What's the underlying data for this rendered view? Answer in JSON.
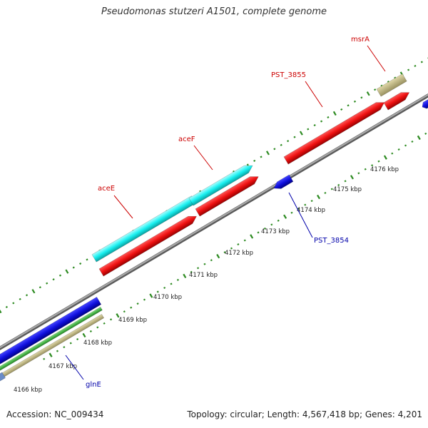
{
  "title": "Pseudomonas stutzeri A1501, complete genome",
  "footer": {
    "accession": "Accession: NC_009434",
    "summary": "Topology: circular; Length: 4,567,418 bp; Genes: 4,201"
  },
  "ticks": [
    {
      "label": "4166 kbp"
    },
    {
      "label": "4167 kbp"
    },
    {
      "label": "4168 kbp"
    },
    {
      "label": "4169 kbp"
    },
    {
      "label": "4170 kbp"
    },
    {
      "label": "4171 kbp"
    },
    {
      "label": "4172 kbp"
    },
    {
      "label": "4173 kbp"
    },
    {
      "label": "4174 kbp"
    },
    {
      "label": "4175 kbp"
    },
    {
      "label": "4176 kbp"
    }
  ],
  "gene_labels": [
    {
      "name": "aceE",
      "color": "#cc0000"
    },
    {
      "name": "aceF",
      "color": "#cc0000"
    },
    {
      "name": "PST_3855",
      "color": "#cc0000"
    },
    {
      "name": "msrA",
      "color": "#cc0000"
    },
    {
      "name": "PST_3854",
      "color": "#0000aa"
    },
    {
      "name": "glnE",
      "color": "#0000aa"
    }
  ],
  "colors": {
    "backbone": "#8c8c8c",
    "tick": "#2e8b22",
    "cds_red": "#ee1111",
    "cds_cyan": "#19f0f0",
    "cds_blue": "#1010dd",
    "cds_green": "#33bb33",
    "cds_tan": "#c0b880",
    "cds_grayblue": "#6a8cc8"
  }
}
